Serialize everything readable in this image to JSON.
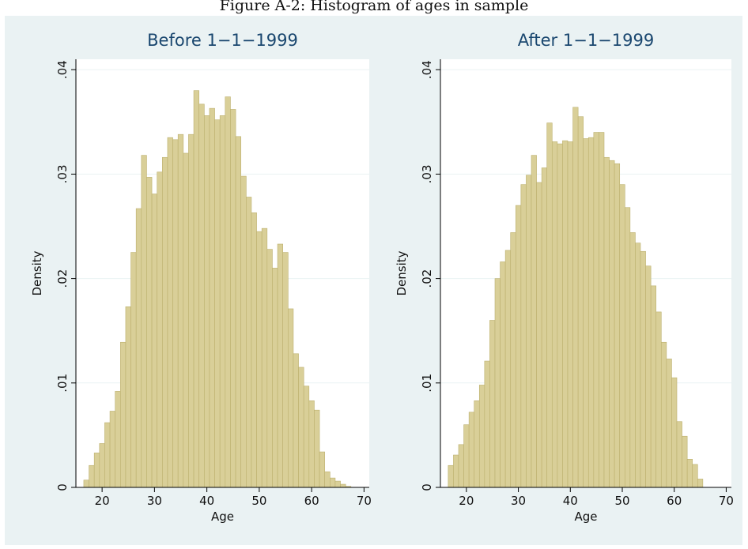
{
  "figure_caption": "Figure A-2: Histogram of ages in sample",
  "colors": {
    "bar_fill": "#d9cf98",
    "bar_stroke": "#bcb06e",
    "plot_bg": "#ffffff",
    "outer_bg": "#eaf2f3",
    "title_color": "#1a476f",
    "grid": "#eaf2f3"
  },
  "chart_data": [
    {
      "type": "bar",
      "title": "Before 1−1−1999",
      "xlabel": "Age",
      "ylabel": "Density",
      "xlim": [
        15,
        71
      ],
      "ylim": [
        0,
        0.041
      ],
      "xticks": [
        "20",
        "30",
        "40",
        "50",
        "60",
        "70"
      ],
      "yticks": [
        "0",
        ".01",
        ".02",
        ".03",
        ".04"
      ],
      "grid": true,
      "bin_start": 16.5,
      "bin_width": 1,
      "values": [
        0.0007,
        0.0021,
        0.0033,
        0.0042,
        0.0062,
        0.0073,
        0.0092,
        0.0139,
        0.0173,
        0.0225,
        0.0267,
        0.0318,
        0.0297,
        0.0281,
        0.0302,
        0.0316,
        0.0335,
        0.0333,
        0.0338,
        0.032,
        0.0338,
        0.038,
        0.0367,
        0.0356,
        0.0363,
        0.0352,
        0.0356,
        0.0374,
        0.0362,
        0.0336,
        0.0298,
        0.0278,
        0.0263,
        0.0245,
        0.0248,
        0.0228,
        0.021,
        0.0233,
        0.0225,
        0.0171,
        0.0128,
        0.0115,
        0.0097,
        0.0083,
        0.0074,
        0.0034,
        0.0015,
        0.0009,
        0.0006,
        0.0003,
        0.0001
      ]
    },
    {
      "type": "bar",
      "title": "After 1−1−1999",
      "xlabel": "Age",
      "ylabel": "Density",
      "xlim": [
        15,
        71
      ],
      "ylim": [
        0,
        0.041
      ],
      "xticks": [
        "20",
        "30",
        "40",
        "50",
        "60",
        "70"
      ],
      "yticks": [
        "0",
        ".01",
        ".02",
        ".03",
        ".04"
      ],
      "grid": true,
      "bin_start": 16.5,
      "bin_width": 1,
      "values": [
        0.0021,
        0.0031,
        0.0041,
        0.006,
        0.0072,
        0.0083,
        0.0098,
        0.0121,
        0.016,
        0.02,
        0.0216,
        0.0227,
        0.0244,
        0.027,
        0.029,
        0.0299,
        0.0318,
        0.0292,
        0.0306,
        0.0349,
        0.0331,
        0.0329,
        0.0332,
        0.0331,
        0.0364,
        0.0355,
        0.0334,
        0.0335,
        0.034,
        0.034,
        0.0316,
        0.0313,
        0.031,
        0.029,
        0.0268,
        0.0244,
        0.0234,
        0.0226,
        0.0212,
        0.0193,
        0.0168,
        0.0139,
        0.0123,
        0.0105,
        0.0063,
        0.0049,
        0.0027,
        0.0022,
        0.0008
      ]
    }
  ]
}
